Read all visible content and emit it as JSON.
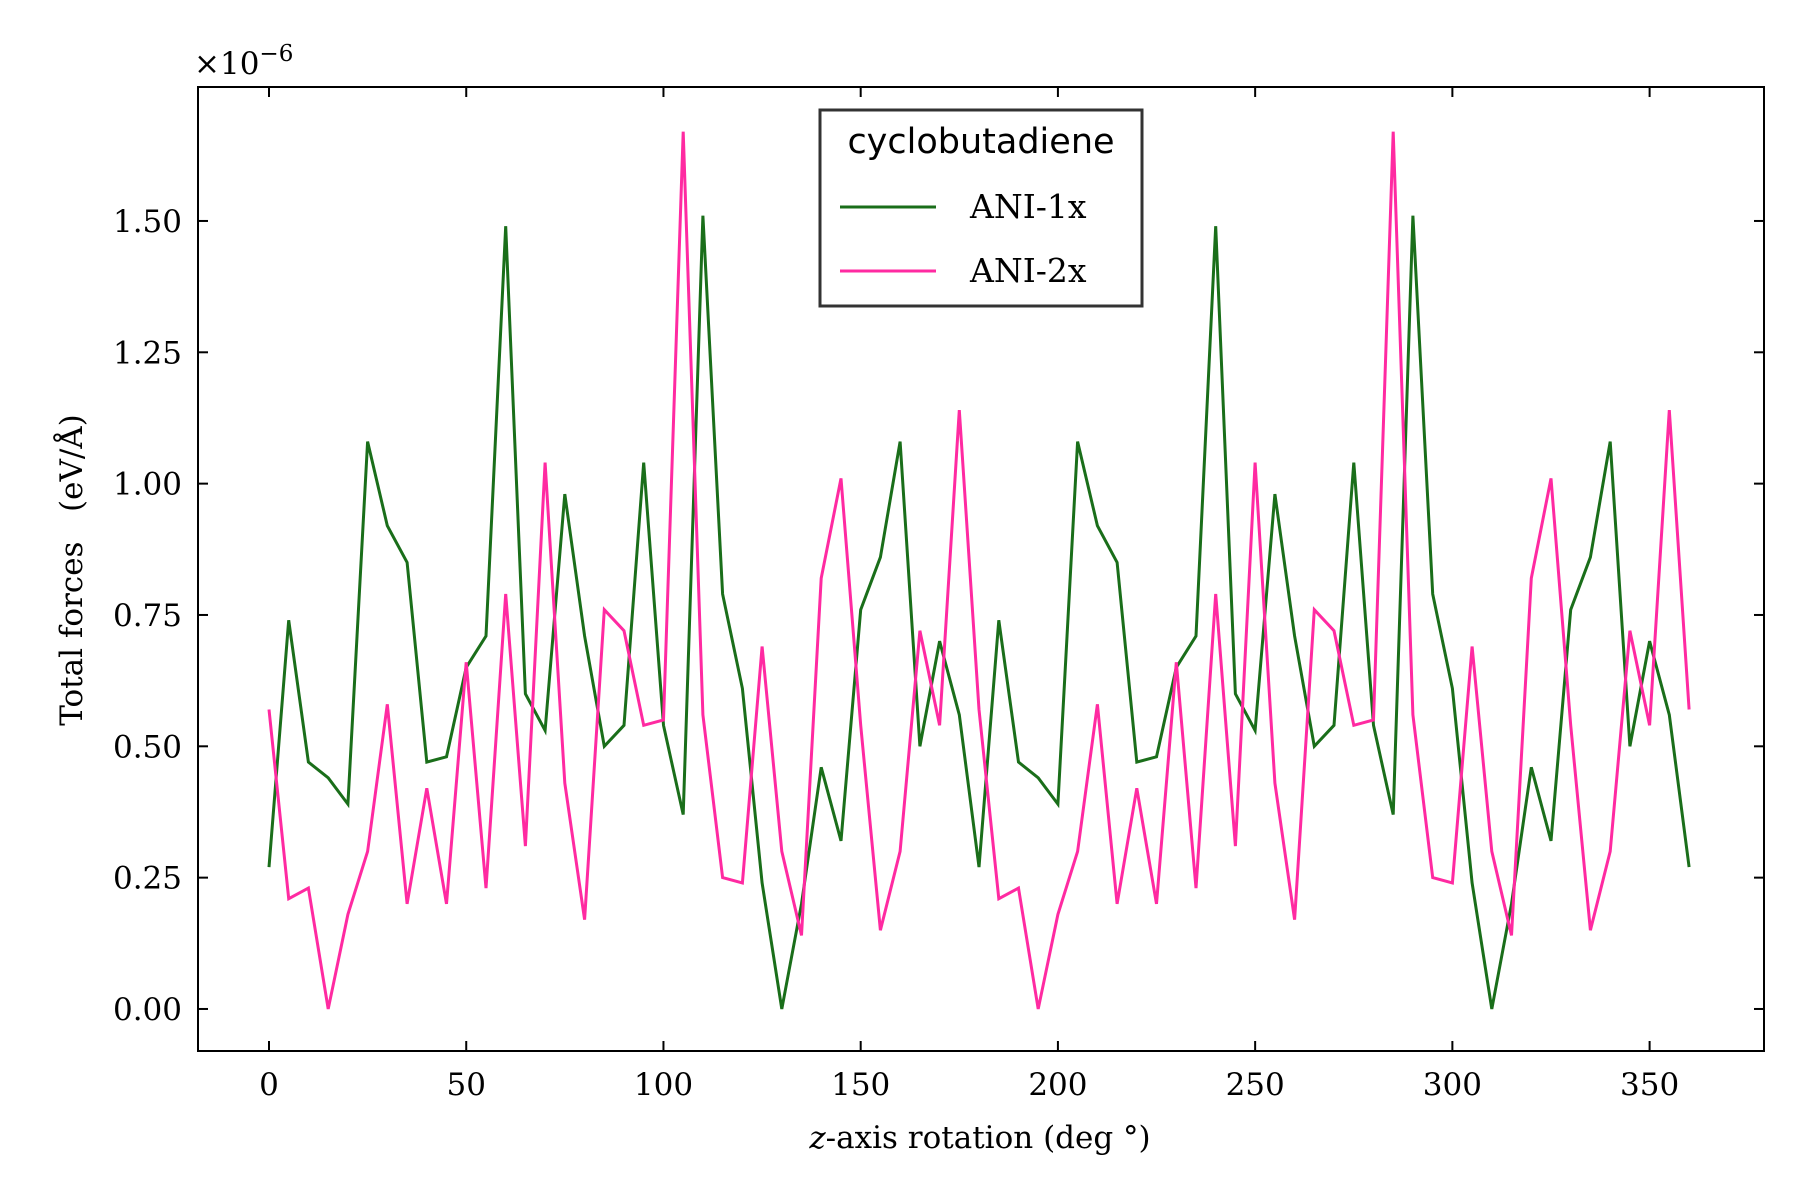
{
  "chart_data": {
    "type": "line",
    "title": "",
    "xlabel_var": "z",
    "xlabel_rest": "-axis rotation (deg °)",
    "ylabel": "Total forces   (eV/Å)",
    "y_offset_label": "×10",
    "y_offset_exponent": "−6",
    "xlim": [
      -18,
      379
    ],
    "ylim": [
      -0.08,
      1.755
    ],
    "xticks": [
      0,
      50,
      100,
      150,
      200,
      250,
      300,
      350
    ],
    "xtick_labels": [
      "0",
      "50",
      "100",
      "150",
      "200",
      "250",
      "300",
      "350"
    ],
    "yticks": [
      0.0,
      0.25,
      0.5,
      0.75,
      1.0,
      1.25,
      1.5
    ],
    "ytick_labels": [
      "0.00",
      "0.25",
      "0.50",
      "0.75",
      "1.00",
      "1.25",
      "1.50"
    ],
    "grid": false,
    "legend_position": "top-center",
    "legend_title": "cyclobutadiene",
    "x": [
      0,
      5,
      10,
      15,
      20,
      25,
      30,
      35,
      40,
      45,
      50,
      55,
      60,
      65,
      70,
      75,
      80,
      85,
      90,
      95,
      100,
      105,
      110,
      115,
      120,
      125,
      130,
      135,
      140,
      145,
      150,
      155,
      160,
      165,
      170,
      175,
      180,
      185,
      190,
      195,
      200,
      205,
      210,
      215,
      220,
      225,
      230,
      235,
      240,
      245,
      250,
      255,
      260,
      265,
      270,
      275,
      280,
      285,
      290,
      295,
      300,
      305,
      310,
      315,
      320,
      325,
      330,
      335,
      340,
      345,
      350,
      355,
      360
    ],
    "series": [
      {
        "name": "ANI-1x",
        "color": "#1a6e1a",
        "values": [
          0.27,
          0.74,
          0.47,
          0.44,
          0.39,
          1.08,
          0.92,
          0.85,
          0.47,
          0.48,
          0.65,
          0.71,
          1.49,
          0.6,
          0.53,
          0.98,
          0.71,
          0.5,
          0.54,
          1.04,
          0.54,
          0.37,
          1.51,
          0.79,
          0.61,
          0.24,
          0.0,
          0.2,
          0.46,
          0.32,
          0.76,
          0.86,
          1.08,
          0.5,
          0.7,
          0.56,
          0.27,
          0.74,
          0.47,
          0.44,
          0.39,
          1.08,
          0.92,
          0.85,
          0.47,
          0.48,
          0.65,
          0.71,
          1.49,
          0.6,
          0.53,
          0.98,
          0.71,
          0.5,
          0.54,
          1.04,
          0.54,
          0.37,
          1.51,
          0.79,
          0.61,
          0.24,
          0.0,
          0.2,
          0.46,
          0.32,
          0.76,
          0.86,
          1.08,
          0.5,
          0.7,
          0.56,
          0.27
        ]
      },
      {
        "name": "ANI-2x",
        "color": "#ff2aa1",
        "values": [
          0.57,
          0.21,
          0.23,
          0.0,
          0.18,
          0.3,
          0.58,
          0.2,
          0.42,
          0.2,
          0.66,
          0.23,
          0.79,
          0.31,
          1.04,
          0.43,
          0.17,
          0.76,
          0.72,
          0.54,
          0.55,
          1.67,
          0.56,
          0.25,
          0.24,
          0.69,
          0.3,
          0.14,
          0.82,
          1.01,
          0.54,
          0.15,
          0.3,
          0.72,
          0.54,
          1.14,
          0.57,
          0.21,
          0.23,
          0.0,
          0.18,
          0.3,
          0.58,
          0.2,
          0.42,
          0.2,
          0.66,
          0.23,
          0.79,
          0.31,
          1.04,
          0.43,
          0.17,
          0.76,
          0.72,
          0.54,
          0.55,
          1.67,
          0.56,
          0.25,
          0.24,
          0.69,
          0.3,
          0.14,
          0.82,
          1.01,
          0.54,
          0.15,
          0.3,
          0.72,
          0.54,
          1.14,
          0.57
        ]
      }
    ]
  }
}
